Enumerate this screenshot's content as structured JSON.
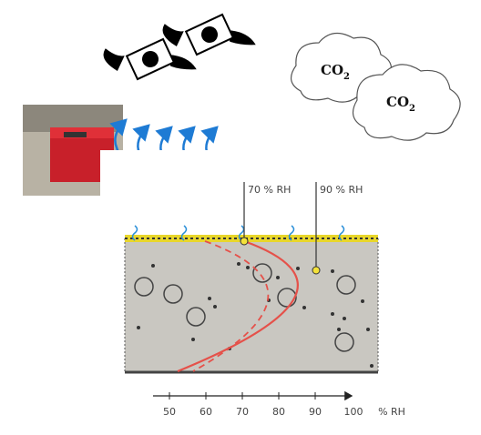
{
  "clouds": [
    {
      "text": "CO",
      "subscript": "2"
    },
    {
      "text": "CO",
      "subscript": "2"
    }
  ],
  "annotations": [
    "70 % RH",
    "90 % RH"
  ],
  "axis": {
    "ticks": [
      "50",
      "60",
      "70",
      "80",
      "90",
      "100"
    ],
    "unit": "% RH"
  }
}
